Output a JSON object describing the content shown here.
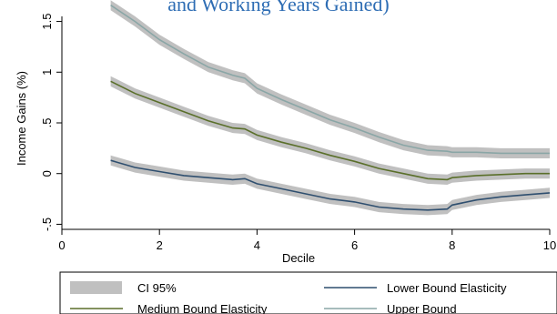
{
  "chart_data": {
    "type": "line",
    "title": "and Working Years Gained)",
    "xlabel": "Decile",
    "ylabel": "Income Gains (%)",
    "xlim": [
      0,
      10
    ],
    "ylim": [
      -0.55,
      1.55
    ],
    "xticks": [
      0,
      2,
      4,
      6,
      8,
      10
    ],
    "yticks": [
      1.5,
      1,
      0.5,
      0,
      -0.5
    ],
    "ytick_labels": [
      "1.5",
      "1",
      ".5",
      "0",
      "-.5"
    ],
    "grid": false,
    "legend_position": "bottom",
    "ci_half_width": 0.05,
    "x": [
      1,
      1.5,
      2,
      2.5,
      3,
      3.5,
      3.75,
      4,
      4.5,
      5,
      5.5,
      6,
      6.5,
      7,
      7.5,
      7.9,
      8,
      8.5,
      9,
      9.5,
      10
    ],
    "series": [
      {
        "name": "Lower Bound Elasticity",
        "color": "#2f4f6f",
        "values": [
          0.13,
          0.06,
          0.02,
          -0.02,
          -0.04,
          -0.06,
          -0.05,
          -0.1,
          -0.15,
          -0.2,
          -0.25,
          -0.28,
          -0.33,
          -0.35,
          -0.36,
          -0.35,
          -0.31,
          -0.26,
          -0.23,
          -0.21,
          -0.19
        ]
      },
      {
        "name": "Medium Bound Elasticity",
        "color": "#5a6f2a",
        "values": [
          0.91,
          0.79,
          0.7,
          0.61,
          0.52,
          0.45,
          0.44,
          0.38,
          0.31,
          0.25,
          0.18,
          0.12,
          0.05,
          0.0,
          -0.05,
          -0.06,
          -0.04,
          -0.02,
          -0.01,
          0.0,
          0.0
        ]
      },
      {
        "name": "Upper Bound",
        "color": "#8aa6a6",
        "values": [
          1.66,
          1.5,
          1.32,
          1.18,
          1.05,
          0.97,
          0.94,
          0.84,
          0.73,
          0.63,
          0.53,
          0.45,
          0.36,
          0.28,
          0.23,
          0.22,
          0.21,
          0.21,
          0.2,
          0.2,
          0.2
        ]
      }
    ],
    "ci_label": "CI 95%",
    "ci_color": "#c0c0c0"
  }
}
